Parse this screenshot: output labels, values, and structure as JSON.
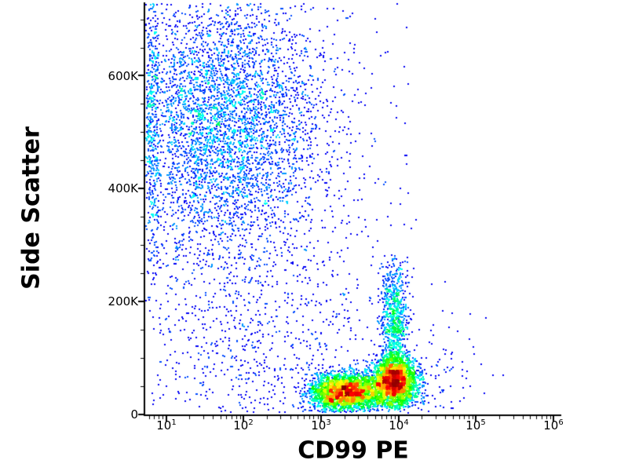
{
  "chart_data": {
    "type": "scatter",
    "subtype": "flow-cytometry-density-dot-plot",
    "title": "",
    "xlabel": "CD99 PE",
    "ylabel": "Side Scatter",
    "x_scale": "log10",
    "x_range_log": [
      0.73,
      6.1
    ],
    "x_tick_base": "10",
    "x_tick_exponents": [
      1,
      2,
      3,
      4,
      5,
      6
    ],
    "y_range": [
      0,
      730000
    ],
    "y_tick_values": [
      0,
      200000,
      400000,
      600000
    ],
    "y_tick_labels": [
      "0",
      "200K",
      "400K",
      "600K"
    ],
    "y_minor_tick_step": 50000,
    "grid": false,
    "legend": "none",
    "axis_color": "#000000",
    "background_color": "#ffffff",
    "colormap": "jet-density",
    "colormap_stops": [
      "#00008B",
      "#0000FF",
      "#00FFFF",
      "#00FF00",
      "#FFFF00",
      "#FF0000",
      "#800000"
    ],
    "density_gamma": 0.5,
    "populations": [
      {
        "name": "granulocyte-cloud",
        "count": 4000,
        "x_dist": "gauss",
        "x_log_mean": 1.75,
        "x_log_sd": 0.65,
        "x_log_min": 0.78,
        "x_log_max": 3.7,
        "y_dist": "gauss",
        "y_mean": 520000,
        "y_sd": 120000,
        "y_min": 255000,
        "y_max": 728000
      },
      {
        "name": "left-axis-pile",
        "count": 380,
        "x_dist": "uniform",
        "x_log_min": 0.74,
        "x_log_max": 0.9,
        "y_dist": "gauss",
        "y_mean": 500000,
        "y_sd": 140000,
        "y_min": 200000,
        "y_max": 728000
      },
      {
        "name": "low-left-scatter",
        "count": 700,
        "x_dist": "gauss",
        "x_log_mean": 2.1,
        "x_log_sd": 0.85,
        "x_log_min": 0.78,
        "x_log_max": 4.0,
        "y_dist": "gauss",
        "y_mean": 150000,
        "y_sd": 110000,
        "y_min": 2000,
        "y_max": 420000
      },
      {
        "name": "sparse-background",
        "count": 320,
        "x_dist": "uniform",
        "x_log_min": 0.78,
        "x_log_max": 4.25,
        "y_dist": "uniform",
        "y_min": 2000,
        "y_max": 728000
      },
      {
        "name": "cd99-dim-blob",
        "count": 3200,
        "x_dist": "gauss",
        "x_log_mean": 3.32,
        "x_log_sd": 0.24,
        "x_log_min": 2.7,
        "x_log_max": 3.8,
        "y_dist": "gauss",
        "y_mean": 40000,
        "y_sd": 17000,
        "y_min": 4000,
        "y_max": 100000
      },
      {
        "name": "cd99-bright-blob",
        "count": 3300,
        "x_dist": "gauss",
        "x_log_mean": 3.95,
        "x_log_sd": 0.14,
        "x_log_min": 3.45,
        "x_log_max": 4.35,
        "y_dist": "gauss",
        "y_mean": 58000,
        "y_sd": 23000,
        "y_min": 6000,
        "y_max": 135000
      },
      {
        "name": "monocyte-streak",
        "count": 750,
        "x_dist": "gauss",
        "x_log_mean": 3.95,
        "x_log_sd": 0.085,
        "x_log_min": 3.7,
        "x_log_max": 4.2,
        "y_dist": "gauss",
        "y_mean": 165000,
        "y_sd": 55000,
        "y_min": 95000,
        "y_max": 285000
      },
      {
        "name": "right-sparse",
        "count": 90,
        "x_dist": "gauss",
        "x_log_mean": 4.45,
        "x_log_sd": 0.3,
        "x_log_min": 4.2,
        "x_log_max": 5.4,
        "y_dist": "gauss",
        "y_mean": 70000,
        "y_sd": 60000,
        "y_min": 2000,
        "y_max": 250000
      }
    ]
  }
}
